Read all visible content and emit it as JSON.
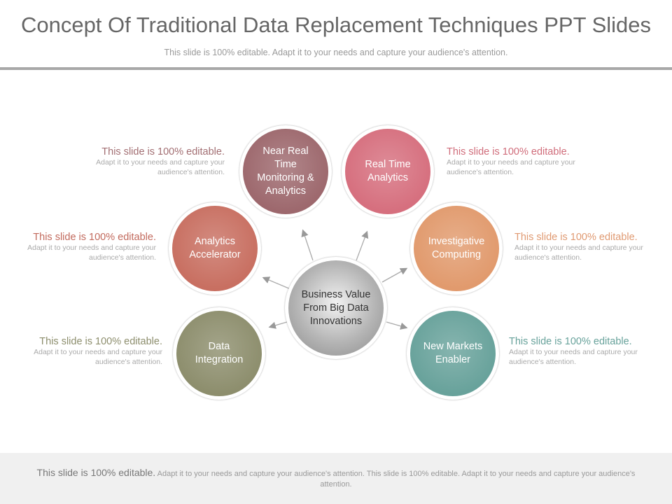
{
  "header": {
    "title": "Concept Of Traditional Data Replacement Techniques PPT Slides",
    "subtitle": "This slide is 100% editable. Adapt it to your needs and capture your audience's attention."
  },
  "center": {
    "label": "Business Value From Big Data Innovations",
    "color": "#a3a3a3"
  },
  "nodes": [
    {
      "label": "Near Real Time Monitoring & Analytics",
      "color": "#9d686d"
    },
    {
      "label": "Real Time Analytics",
      "color": "#d66f7e"
    },
    {
      "label": "Analytics Accelerator",
      "color": "#c86f61"
    },
    {
      "label": "Investigative Computing",
      "color": "#e19a6d"
    },
    {
      "label": "Data Integration",
      "color": "#8d8e6d"
    },
    {
      "label": "New Markets Enabler",
      "color": "#68a29b"
    }
  ],
  "notes": [
    {
      "heading": "This slide is 100% editable.",
      "body": "Adapt it to your needs and capture your audience's attention.",
      "color": "#a26e72"
    },
    {
      "heading": "This slide is 100% editable.",
      "body": "Adapt it to your needs and capture your audience's attention.",
      "color": "#d06d7b"
    },
    {
      "heading": "This slide is 100% editable.",
      "body": "Adapt it to your needs and capture your audience's attention.",
      "color": "#c26a5d"
    },
    {
      "heading": "This slide is 100% editable.",
      "body": "Adapt it to your needs and capture your audience's attention.",
      "color": "#e09a72"
    },
    {
      "heading": "This slide is 100% editable.",
      "body": "Adapt it to your needs and capture your audience's attention.",
      "color": "#8d8e6d"
    },
    {
      "heading": "This slide is 100% editable.",
      "body": "Adapt it to your needs and capture your audience's attention.",
      "color": "#68a29b"
    }
  ],
  "footer": {
    "heading": "This slide is 100% editable.",
    "body": "Adapt it to your needs and capture your audience's attention. This slide is 100% editable. Adapt it to your needs and capture your audience's attention."
  }
}
